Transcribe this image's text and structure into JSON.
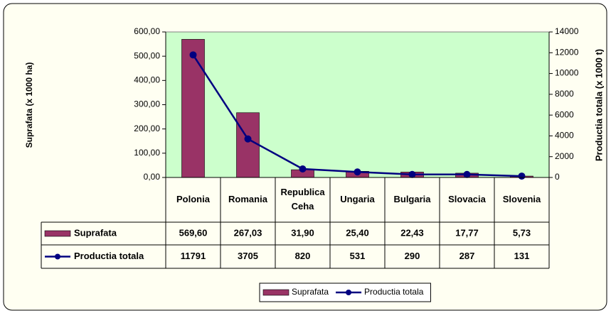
{
  "chart_data": {
    "type": "bar",
    "categories": [
      "Polonia",
      "Romania",
      "Republica Ceha",
      "Ungaria",
      "Bulgaria",
      "Slovacia",
      "Slovenia"
    ],
    "series": [
      {
        "name": "Suprafata",
        "type": "bar",
        "color": "#993366",
        "values": [
          569.6,
          267.03,
          31.9,
          25.4,
          22.43,
          17.77,
          5.73
        ],
        "value_labels": [
          "569,60",
          "267,03",
          "31,90",
          "25,40",
          "22,43",
          "17,77",
          "5,73"
        ]
      },
      {
        "name": "Productia totala",
        "type": "line",
        "axis": "y2",
        "color": "#000080",
        "values": [
          11791,
          3705,
          820,
          531,
          290,
          287,
          131
        ]
      }
    ],
    "ylabel": "Suprafata  (x 1000 ha)",
    "y2label": "Productia totala  (x 1000 t)",
    "ylim": [
      0,
      600
    ],
    "yticks": [
      {
        "value": 0,
        "label": "0,00"
      },
      {
        "value": 100,
        "label": "100,00"
      },
      {
        "value": 200,
        "label": "200,00"
      },
      {
        "value": 300,
        "label": "300,00"
      },
      {
        "value": 400,
        "label": "400,00"
      },
      {
        "value": 500,
        "label": "500,00"
      },
      {
        "value": 600,
        "label": "600,00"
      }
    ],
    "y2lim": [
      0,
      14000
    ],
    "y2ticks": [
      0,
      2000,
      4000,
      6000,
      8000,
      10000,
      12000,
      14000
    ],
    "grid": false,
    "legend": "bottom"
  }
}
